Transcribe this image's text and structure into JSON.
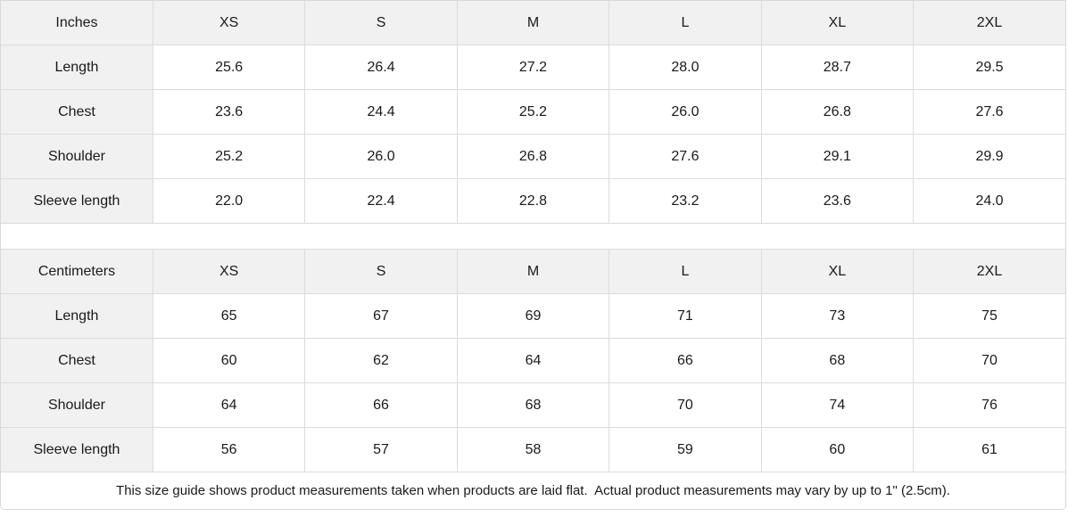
{
  "tables": [
    {
      "unit_label": "Inches",
      "columns": [
        "XS",
        "S",
        "M",
        "L",
        "XL",
        "2XL"
      ],
      "rows": [
        {
          "label": "Length",
          "values": [
            "25.6",
            "26.4",
            "27.2",
            "28.0",
            "28.7",
            "29.5"
          ]
        },
        {
          "label": "Chest",
          "values": [
            "23.6",
            "24.4",
            "25.2",
            "26.0",
            "26.8",
            "27.6"
          ]
        },
        {
          "label": "Shoulder",
          "values": [
            "25.2",
            "26.0",
            "26.8",
            "27.6",
            "29.1",
            "29.9"
          ]
        },
        {
          "label": "Sleeve length",
          "values": [
            "22.0",
            "22.4",
            "22.8",
            "23.2",
            "23.6",
            "24.0"
          ]
        }
      ]
    },
    {
      "unit_label": "Centimeters",
      "columns": [
        "XS",
        "S",
        "M",
        "L",
        "XL",
        "2XL"
      ],
      "rows": [
        {
          "label": "Length",
          "values": [
            "65",
            "67",
            "69",
            "71",
            "73",
            "75"
          ]
        },
        {
          "label": "Chest",
          "values": [
            "60",
            "62",
            "64",
            "66",
            "68",
            "70"
          ]
        },
        {
          "label": "Shoulder",
          "values": [
            "64",
            "66",
            "68",
            "70",
            "74",
            "76"
          ]
        },
        {
          "label": "Sleeve length",
          "values": [
            "56",
            "57",
            "58",
            "59",
            "60",
            "61"
          ]
        }
      ]
    }
  ],
  "footer": {
    "note": "This size guide shows product measurements taken when products are laid flat.  Actual product measurements may vary by up to 1\" (2.5cm)."
  },
  "colors": {
    "header_bg": "#f1f1f1",
    "cell_bg": "#ffffff",
    "border": "#dcdcdc",
    "text": "#1a1a1a"
  }
}
